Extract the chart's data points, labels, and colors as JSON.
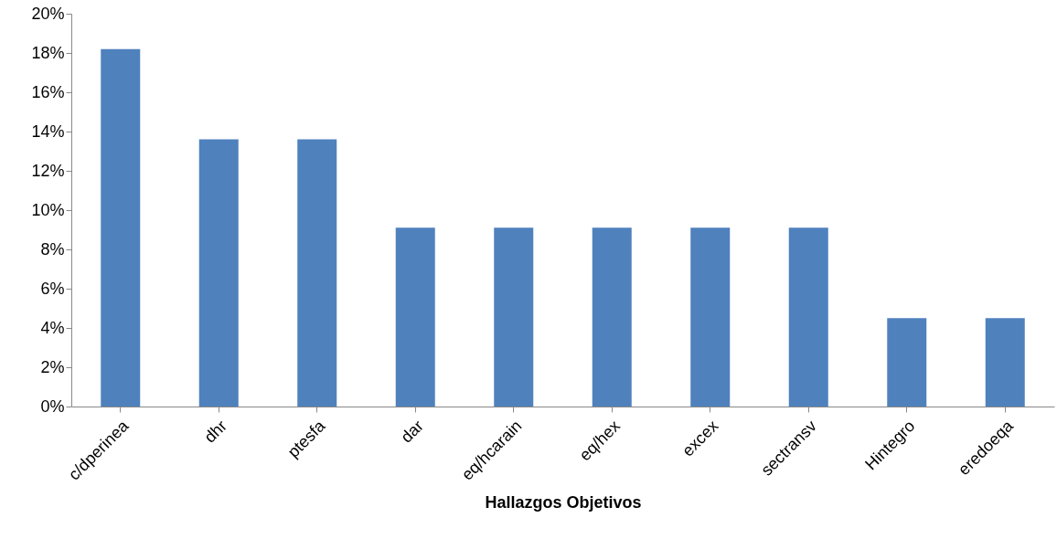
{
  "chart_data": {
    "type": "bar",
    "xlabel": "Hallazgos Objetivos",
    "categories": [
      "c/dperinea",
      "dhr",
      "ptesfa",
      "dar",
      "eq/hcarain",
      "eq/hex",
      "excex",
      "sectransv",
      "Hintegro",
      "eredoeqa"
    ],
    "values": [
      18.2,
      13.6,
      13.6,
      9.1,
      9.1,
      9.1,
      9.1,
      9.1,
      4.5,
      4.5
    ],
    "color": "#4f81bd",
    "ylim": [
      0,
      20
    ],
    "yticks": [
      {
        "value": 0,
        "label": "0%"
      },
      {
        "value": 2,
        "label": "2%"
      },
      {
        "value": 4,
        "label": "4%"
      },
      {
        "value": 6,
        "label": "6%"
      },
      {
        "value": 8,
        "label": "8%"
      },
      {
        "value": 10,
        "label": "10%"
      },
      {
        "value": 12,
        "label": "12%"
      },
      {
        "value": 14,
        "label": "14%"
      },
      {
        "value": 16,
        "label": "16%"
      },
      {
        "value": 18,
        "label": "18%"
      },
      {
        "value": 20,
        "label": "20%"
      }
    ]
  }
}
